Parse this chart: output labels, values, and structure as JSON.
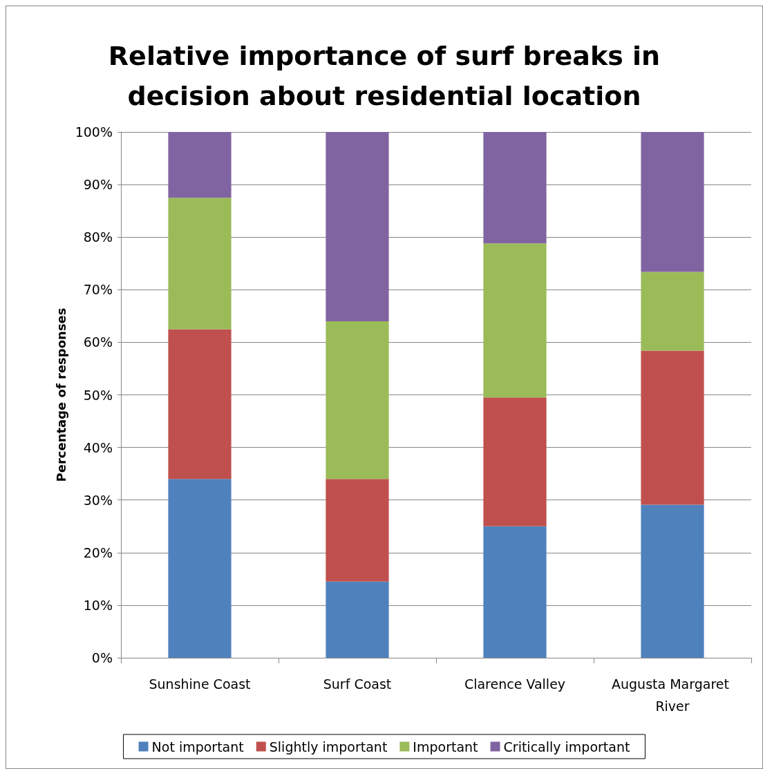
{
  "chart_data": {
    "type": "bar",
    "stacked": true,
    "title": "Relative importance of surf breaks in\ndecision about residential location",
    "ylabel": "Percentage of responses",
    "categories": [
      "Sunshine Coast",
      "Surf Coast",
      "Clarence Valley",
      "Augusta Margaret River"
    ],
    "series": [
      {
        "name": "Not important",
        "color": "#4f81bd",
        "values": [
          34.0,
          14.5,
          25.0,
          29.1
        ]
      },
      {
        "name": "Slightly important",
        "color": "#c0504d",
        "values": [
          28.5,
          19.5,
          24.5,
          29.3
        ]
      },
      {
        "name": "Important",
        "color": "#9bbb59",
        "values": [
          25.0,
          30.0,
          29.3,
          15.0
        ]
      },
      {
        "name": "Critically important",
        "color": "#8064a2",
        "values": [
          12.5,
          36.0,
          21.2,
          26.6
        ]
      }
    ],
    "ylim": [
      0,
      100
    ],
    "yticks": [
      {
        "value": 0,
        "label": "0%"
      },
      {
        "value": 10,
        "label": "10%"
      },
      {
        "value": 20,
        "label": "20%"
      },
      {
        "value": 30,
        "label": "30%"
      },
      {
        "value": 40,
        "label": "40%"
      },
      {
        "value": 50,
        "label": "50%"
      },
      {
        "value": 60,
        "label": "60%"
      },
      {
        "value": 70,
        "label": "70%"
      },
      {
        "value": 80,
        "label": "80%"
      },
      {
        "value": 90,
        "label": "90%"
      },
      {
        "value": 100,
        "label": "100%"
      }
    ],
    "grid": "y",
    "legend": "bottom"
  }
}
